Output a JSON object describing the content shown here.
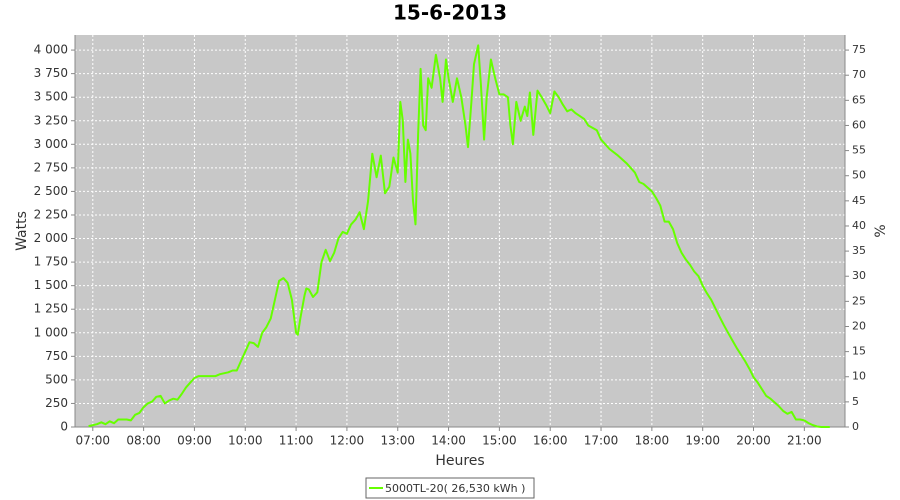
{
  "chart_data": {
    "type": "line",
    "title": "15-6-2013",
    "x_label": "Heures",
    "y_label": "Watts",
    "y2_label": "%",
    "x": [
      "06:55",
      "07:05",
      "07:10",
      "07:15",
      "07:20",
      "07:25",
      "07:30",
      "07:40",
      "07:45",
      "07:50",
      "07:55",
      "08:00",
      "08:05",
      "08:10",
      "08:15",
      "08:20",
      "08:25",
      "08:30",
      "08:35",
      "08:40",
      "08:45",
      "08:50",
      "08:55",
      "09:00",
      "09:05",
      "09:15",
      "09:25",
      "09:30",
      "09:40",
      "09:45",
      "09:50",
      "09:55",
      "10:00",
      "10:05",
      "10:10",
      "10:15",
      "10:20",
      "10:25",
      "10:30",
      "10:35",
      "10:40",
      "10:45",
      "10:50",
      "10:55",
      "11:00",
      "11:02",
      "11:05",
      "11:10",
      "11:12",
      "11:15",
      "11:20",
      "11:25",
      "11:30",
      "11:35",
      "11:40",
      "11:45",
      "11:50",
      "11:55",
      "12:00",
      "12:05",
      "12:10",
      "12:15",
      "12:20",
      "12:25",
      "12:30",
      "12:35",
      "12:40",
      "12:45",
      "12:50",
      "12:55",
      "13:00",
      "13:03",
      "13:06",
      "13:09",
      "13:12",
      "13:15",
      "13:18",
      "13:21",
      "13:24",
      "13:27",
      "13:30",
      "13:33",
      "13:36",
      "13:40",
      "13:45",
      "13:50",
      "13:53",
      "13:57",
      "14:00",
      "14:05",
      "14:10",
      "14:15",
      "14:20",
      "14:23",
      "14:27",
      "14:30",
      "14:35",
      "14:38",
      "14:42",
      "14:45",
      "14:50",
      "14:55",
      "15:00",
      "15:05",
      "15:10",
      "15:13",
      "15:16",
      "15:20",
      "15:25",
      "15:30",
      "15:33",
      "15:36",
      "15:40",
      "15:45",
      "15:50",
      "15:55",
      "16:00",
      "16:05",
      "16:10",
      "16:15",
      "16:20",
      "16:25",
      "16:30",
      "16:40",
      "16:45",
      "16:55",
      "17:00",
      "17:10",
      "17:20",
      "17:30",
      "17:40",
      "17:45",
      "17:50",
      "18:00",
      "18:05",
      "18:10",
      "18:15",
      "18:20",
      "18:25",
      "18:30",
      "18:35",
      "18:40",
      "18:45",
      "18:50",
      "18:55",
      "19:00",
      "19:05",
      "19:10",
      "19:15",
      "19:20",
      "19:25",
      "19:30",
      "19:35",
      "19:40",
      "19:45",
      "19:50",
      "19:55",
      "20:00",
      "20:05",
      "20:10",
      "20:15",
      "20:20",
      "20:25",
      "20:30",
      "20:35",
      "20:40",
      "20:45",
      "20:50",
      "20:55",
      "21:00",
      "21:05",
      "21:10",
      "21:15",
      "21:20",
      "21:30"
    ],
    "series": [
      {
        "name": "5000TL-20( 26,530 kWh )",
        "color": "#66ff00",
        "values": [
          10,
          30,
          50,
          30,
          60,
          40,
          80,
          80,
          70,
          130,
          150,
          210,
          250,
          270,
          320,
          330,
          250,
          280,
          300,
          290,
          350,
          420,
          470,
          520,
          540,
          540,
          540,
          560,
          580,
          600,
          600,
          700,
          800,
          900,
          890,
          850,
          1000,
          1060,
          1150,
          1350,
          1550,
          1580,
          1530,
          1350,
          1000,
          980,
          1150,
          1400,
          1470,
          1460,
          1380,
          1430,
          1750,
          1880,
          1760,
          1850,
          2000,
          2070,
          2050,
          2150,
          2200,
          2280,
          2100,
          2400,
          2900,
          2650,
          2880,
          2480,
          2550,
          2860,
          2700,
          3450,
          3250,
          2600,
          3050,
          2900,
          2400,
          2150,
          3100,
          3800,
          3200,
          3150,
          3700,
          3600,
          3950,
          3700,
          3450,
          3900,
          3700,
          3450,
          3700,
          3500,
          3200,
          2970,
          3450,
          3850,
          4050,
          3650,
          3050,
          3500,
          3900,
          3700,
          3530,
          3530,
          3500,
          3200,
          3000,
          3450,
          3250,
          3400,
          3300,
          3550,
          3100,
          3570,
          3500,
          3420,
          3330,
          3560,
          3500,
          3420,
          3350,
          3370,
          3330,
          3270,
          3200,
          3150,
          3050,
          2950,
          2880,
          2800,
          2700,
          2600,
          2580,
          2500,
          2430,
          2350,
          2180,
          2180,
          2100,
          1950,
          1850,
          1780,
          1720,
          1650,
          1600,
          1500,
          1420,
          1350,
          1260,
          1170,
          1080,
          1000,
          920,
          840,
          770,
          700,
          620,
          530,
          470,
          400,
          330,
          300,
          260,
          220,
          170,
          140,
          160,
          80,
          80,
          70,
          40,
          20,
          5,
          0,
          0
        ]
      }
    ],
    "xlim": [
      "06:39",
      "21:48"
    ],
    "xticks": [
      "07:00",
      "08:00",
      "09:00",
      "10:00",
      "11:00",
      "12:00",
      "13:00",
      "14:00",
      "15:00",
      "16:00",
      "17:00",
      "18:00",
      "19:00",
      "20:00",
      "21:00"
    ],
    "ylim": [
      0,
      4160
    ],
    "yticks": [
      0,
      250,
      500,
      750,
      {
        "value": 1000,
        "label": "1 000"
      },
      {
        "value": 1250,
        "label": "1 250"
      },
      {
        "value": 1500,
        "label": "1 500"
      },
      {
        "value": 1750,
        "label": "1 750"
      },
      {
        "value": 2000,
        "label": "2 000"
      },
      {
        "value": 2250,
        "label": "2 250"
      },
      {
        "value": 2500,
        "label": "2 500"
      },
      {
        "value": 2750,
        "label": "2 750"
      },
      {
        "value": 3000,
        "label": "3 000"
      },
      {
        "value": 3250,
        "label": "3 250"
      },
      {
        "value": 3500,
        "label": "3 500"
      },
      {
        "value": 3750,
        "label": "3 750"
      },
      {
        "value": 4000,
        "label": "4 000"
      }
    ],
    "y2lim": [
      0,
      78
    ],
    "y2ticks": [
      0,
      5,
      10,
      15,
      20,
      25,
      30,
      35,
      40,
      45,
      50,
      55,
      60,
      65,
      70,
      75
    ],
    "grid": true,
    "legend": "bottom"
  }
}
